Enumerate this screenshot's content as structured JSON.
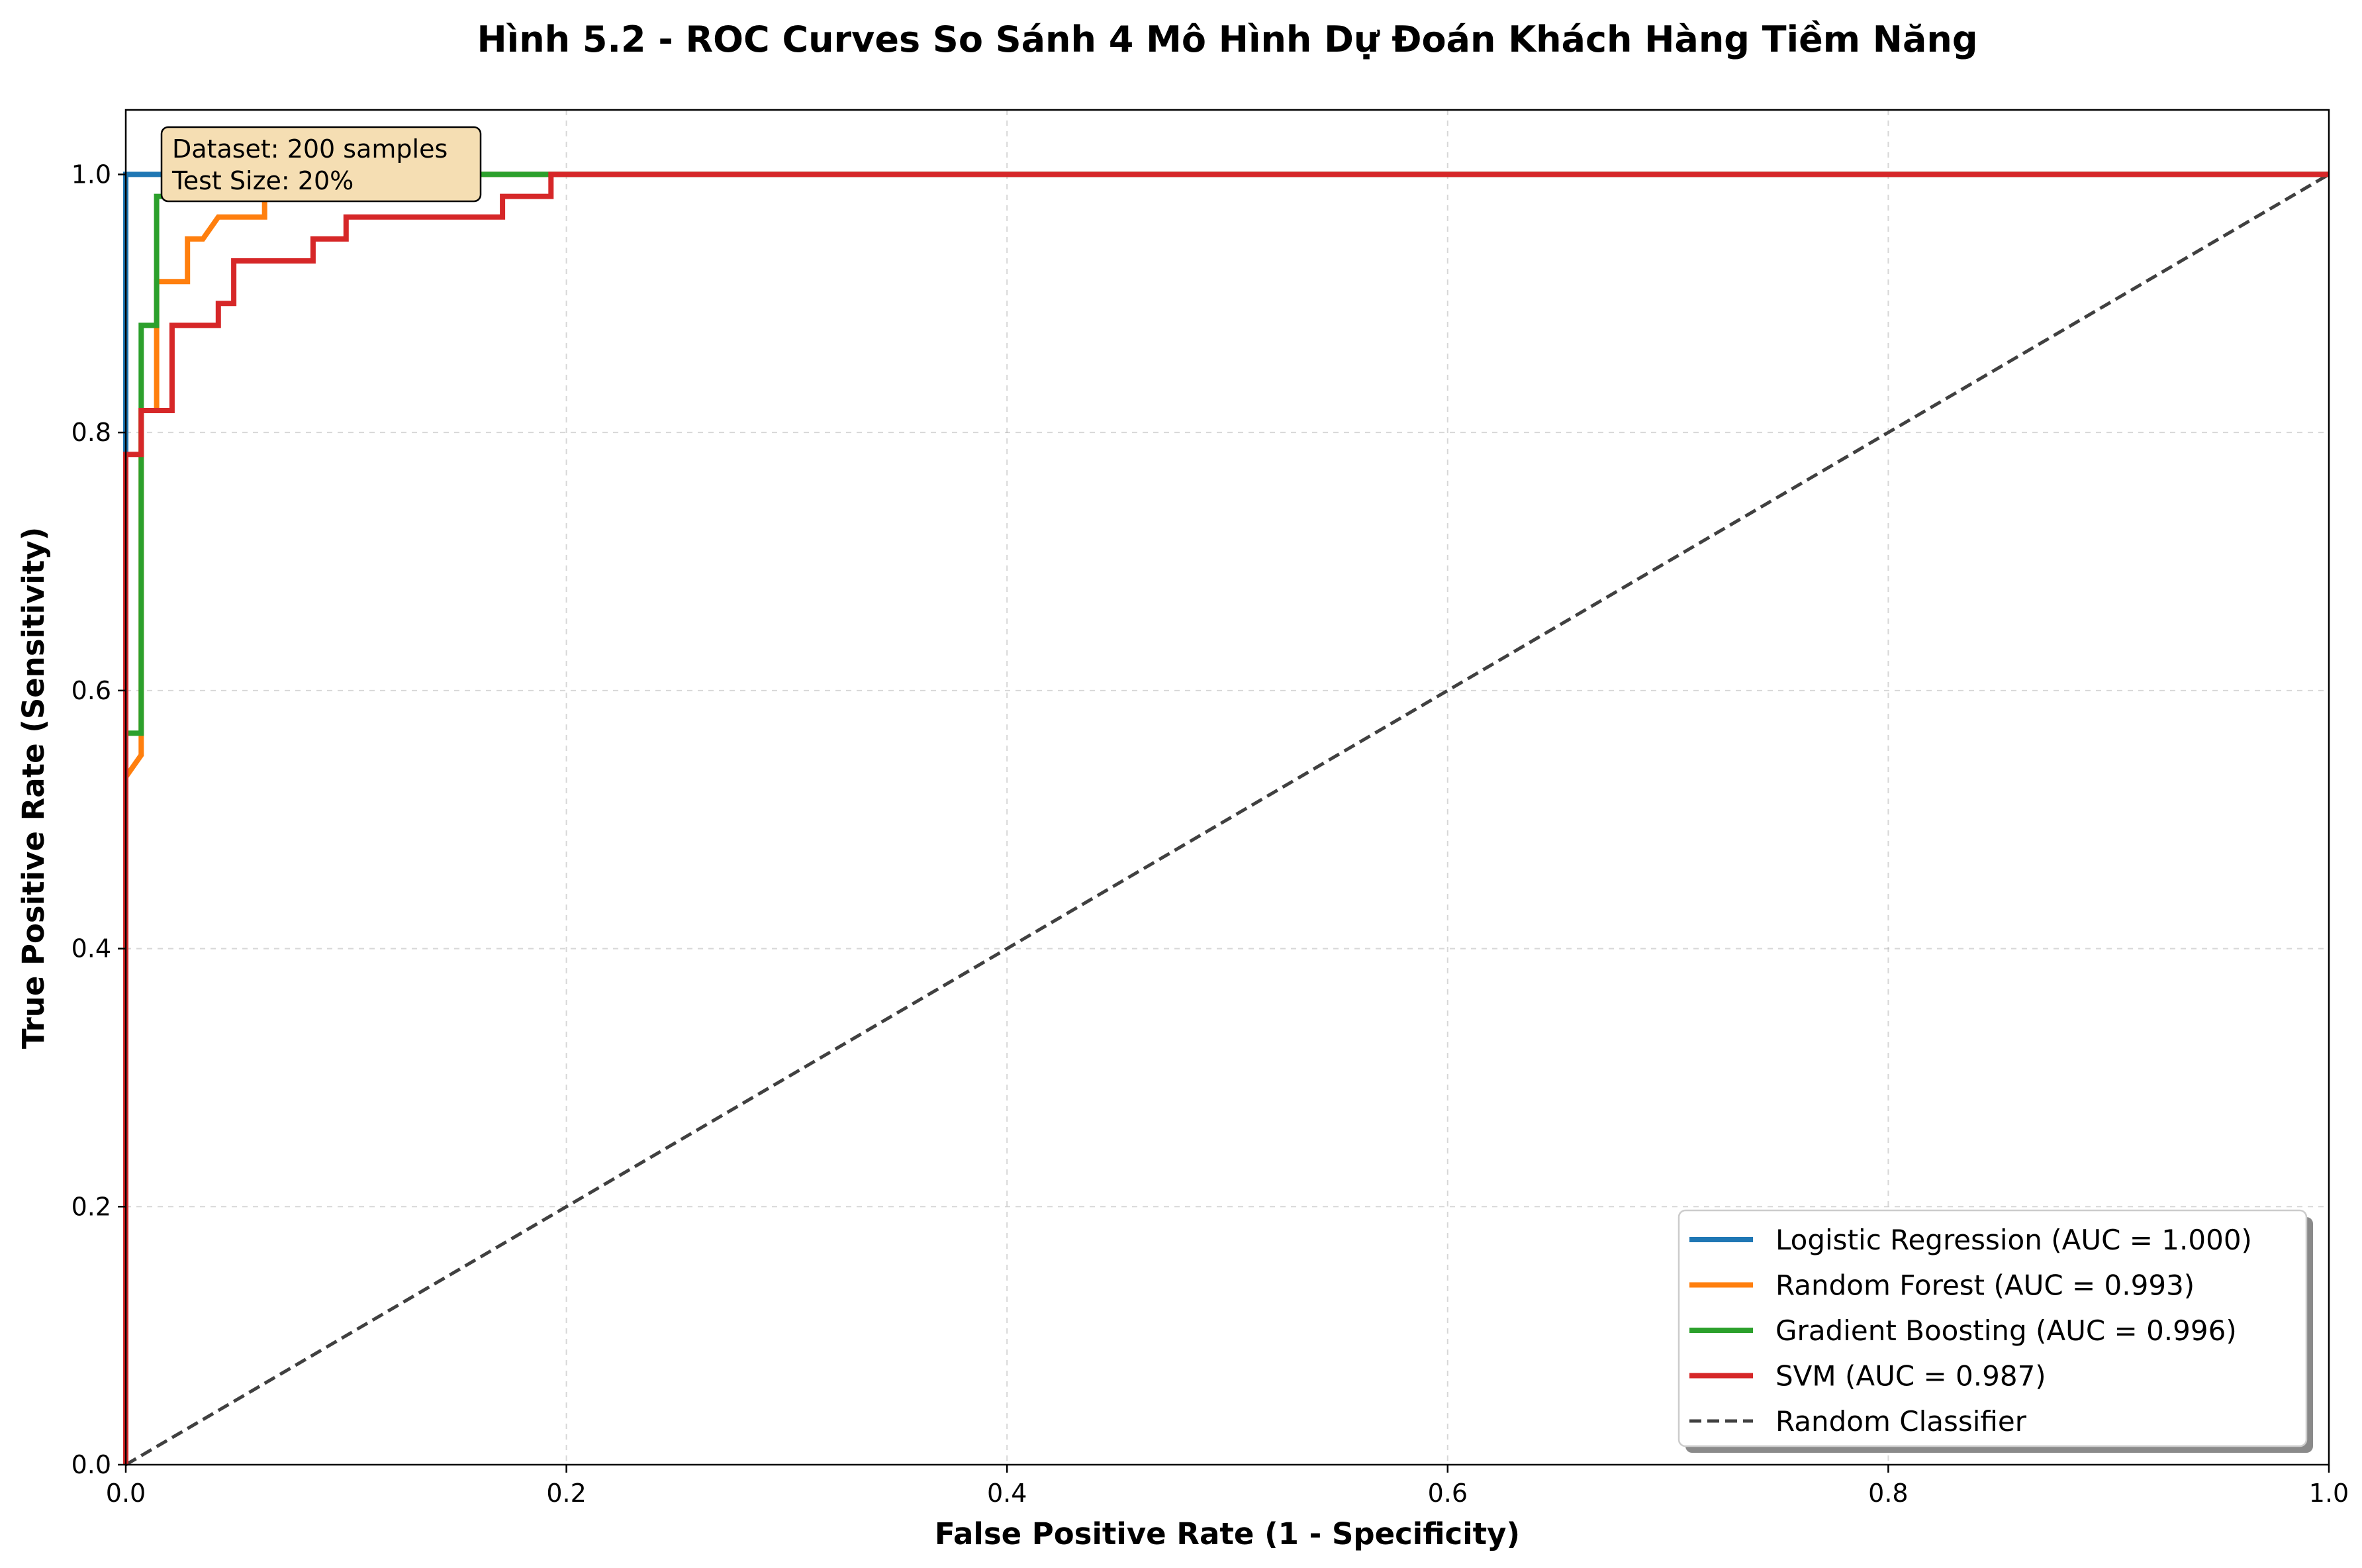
{
  "chart_data": {
    "type": "line",
    "title": "Hình 5.2 - ROC Curves So Sánh 4 Mô Hình Dự Đoán Khách Hàng Tiềm Năng",
    "xlabel": "False Positive Rate (1 - Specificity)",
    "ylabel": "True Positive Rate (Sensitivity)",
    "xlim": [
      0,
      1
    ],
    "ylim": [
      0,
      1.05
    ],
    "xticks": [
      "0.0",
      "0.2",
      "0.4",
      "0.6",
      "0.8",
      "1.0"
    ],
    "yticks": [
      "0.0",
      "0.2",
      "0.4",
      "0.6",
      "0.8",
      "1.0"
    ],
    "grid": true,
    "legend_position": "lower right",
    "annotation": {
      "lines": [
        "Dataset: 200 samples",
        "Test Size: 20%"
      ],
      "position": "upper left",
      "background": "#f5deb3"
    },
    "series": [
      {
        "name": "Logistic Regression (AUC = 1.000)",
        "color": "#1f77b4",
        "x": [
          0,
          0,
          1
        ],
        "y": [
          0,
          1,
          1
        ]
      },
      {
        "name": "Random Forest (AUC = 0.993)",
        "color": "#ff7f0e",
        "x": [
          0,
          0,
          0.007,
          0.007,
          0.014,
          0.014,
          0.028,
          0.028,
          0.035,
          0.042,
          0.042,
          0.063,
          0.063,
          0.07,
          1
        ],
        "y": [
          0,
          0.533,
          0.55,
          0.817,
          0.817,
          0.917,
          0.917,
          0.95,
          0.95,
          0.967,
          0.967,
          0.967,
          0.983,
          1,
          1
        ]
      },
      {
        "name": "Gradient Boosting (AUC = 0.996)",
        "color": "#2ca02c",
        "x": [
          0,
          0,
          0.007,
          0.007,
          0.014,
          0.014,
          0.028,
          0.028,
          1
        ],
        "y": [
          0,
          0.567,
          0.567,
          0.883,
          0.883,
          0.983,
          0.983,
          1,
          1
        ]
      },
      {
        "name": "SVM (AUC = 0.987)",
        "color": "#d62728",
        "x": [
          0,
          0,
          0.007,
          0.007,
          0.021,
          0.021,
          0.042,
          0.042,
          0.049,
          0.049,
          0.085,
          0.085,
          0.1,
          0.1,
          0.171,
          0.171,
          0.193,
          0.193,
          1
        ],
        "y": [
          0,
          0.783,
          0.783,
          0.817,
          0.817,
          0.883,
          0.883,
          0.9,
          0.9,
          0.933,
          0.933,
          0.95,
          0.95,
          0.967,
          0.967,
          0.983,
          0.983,
          1,
          1
        ]
      },
      {
        "name": "Random Classifier",
        "color": "#404040",
        "dashed": true,
        "x": [
          0,
          1
        ],
        "y": [
          0,
          1
        ]
      }
    ]
  }
}
